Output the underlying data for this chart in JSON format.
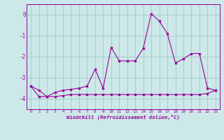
{
  "xlabel": "Windchill (Refroidissement éolien,°C)",
  "background_color": "#cce8e8",
  "grid_color": "#99cccc",
  "line_color": "#990099",
  "x_data": [
    0,
    1,
    2,
    3,
    4,
    5,
    6,
    7,
    8,
    9,
    10,
    11,
    12,
    13,
    14,
    15,
    16,
    17,
    18,
    19,
    20,
    21,
    22,
    23
  ],
  "y_line1": [
    -3.4,
    -3.6,
    -3.9,
    -3.7,
    -3.6,
    -3.55,
    -3.5,
    -3.4,
    -2.6,
    -3.5,
    -1.55,
    -2.2,
    -2.2,
    -2.2,
    -1.6,
    0.05,
    -0.3,
    -0.9,
    -2.3,
    -2.1,
    -1.85,
    -1.85,
    -3.5,
    -3.6
  ],
  "y_line2": [
    -3.4,
    -3.9,
    -3.9,
    -3.9,
    -3.85,
    -3.8,
    -3.8,
    -3.8,
    -3.8,
    -3.8,
    -3.8,
    -3.8,
    -3.8,
    -3.8,
    -3.8,
    -3.8,
    -3.8,
    -3.8,
    -3.8,
    -3.8,
    -3.8,
    -3.8,
    -3.75,
    -3.6
  ],
  "xlim": [
    -0.5,
    23.5
  ],
  "ylim": [
    -4.5,
    0.5
  ],
  "yticks": [
    0,
    -1,
    -2,
    -3,
    -4
  ],
  "xticks": [
    0,
    1,
    2,
    3,
    4,
    5,
    6,
    7,
    8,
    9,
    10,
    11,
    12,
    13,
    14,
    15,
    16,
    17,
    18,
    19,
    20,
    21,
    22,
    23
  ]
}
